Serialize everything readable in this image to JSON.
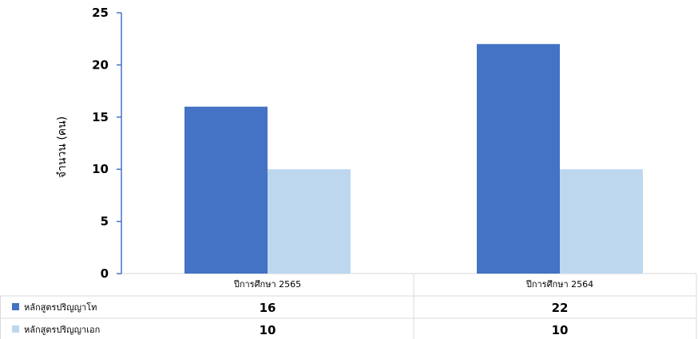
{
  "chart_data": {
    "type": "bar",
    "title": "",
    "xlabel": "",
    "ylabel": "จำนวน (คน)",
    "ylim": [
      0,
      25
    ],
    "yticks": [
      0,
      5,
      10,
      15,
      20,
      25
    ],
    "grid": false,
    "legend": "data-table-below",
    "categories": [
      "ปีการศึกษา 2565",
      "ปีการศึกษา 2564"
    ],
    "series": [
      {
        "name": "หลักสูตรปริญญาโท",
        "values": [
          16,
          22
        ],
        "color": "#4472C4"
      },
      {
        "name": "หลักสูตรปริญญาเอก",
        "values": [
          10,
          10
        ],
        "color": "#BDD7EE"
      }
    ]
  },
  "colors": {
    "axis": "#4472C4",
    "table_border": "#D9D9D9"
  }
}
